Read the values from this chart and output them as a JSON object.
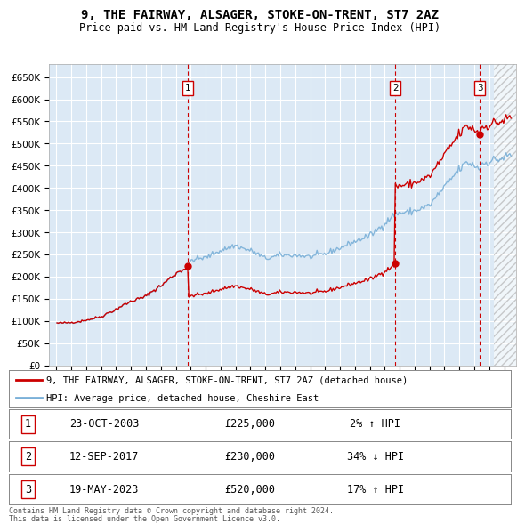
{
  "title": "9, THE FAIRWAY, ALSAGER, STOKE-ON-TRENT, ST7 2AZ",
  "subtitle": "Price paid vs. HM Land Registry's House Price Index (HPI)",
  "ylim": [
    0,
    680000
  ],
  "yticks": [
    0,
    50000,
    100000,
    150000,
    200000,
    250000,
    300000,
    350000,
    400000,
    450000,
    500000,
    550000,
    600000,
    650000
  ],
  "ytick_labels": [
    "£0",
    "£50K",
    "£100K",
    "£150K",
    "£200K",
    "£250K",
    "£300K",
    "£350K",
    "£400K",
    "£450K",
    "£500K",
    "£550K",
    "£600K",
    "£650K"
  ],
  "plot_bg_color": "#dce9f5",
  "fig_bg_color": "#ffffff",
  "hpi_color": "#7ab0d8",
  "price_color": "#cc0000",
  "sale_line_color": "#cc0000",
  "marker_box_color": "#cc0000",
  "sale1_x": 2003.81,
  "sale1_y": 225000,
  "sale1_label": "1",
  "sale1_date": "23-OCT-2003",
  "sale1_price": "£225,000",
  "sale1_hpi": "2% ↑ HPI",
  "sale2_x": 2017.7,
  "sale2_y": 230000,
  "sale2_label": "2",
  "sale2_date": "12-SEP-2017",
  "sale2_price": "£230,000",
  "sale2_hpi": "34% ↓ HPI",
  "sale3_x": 2023.38,
  "sale3_y": 520000,
  "sale3_label": "3",
  "sale3_date": "19-MAY-2023",
  "sale3_price": "£520,000",
  "sale3_hpi": "17% ↑ HPI",
  "legend_line1": "9, THE FAIRWAY, ALSAGER, STOKE-ON-TRENT, ST7 2AZ (detached house)",
  "legend_line2": "HPI: Average price, detached house, Cheshire East",
  "footer1": "Contains HM Land Registry data © Crown copyright and database right 2024.",
  "footer2": "This data is licensed under the Open Government Licence v3.0.",
  "xmin": 1994.5,
  "xmax": 2025.8
}
